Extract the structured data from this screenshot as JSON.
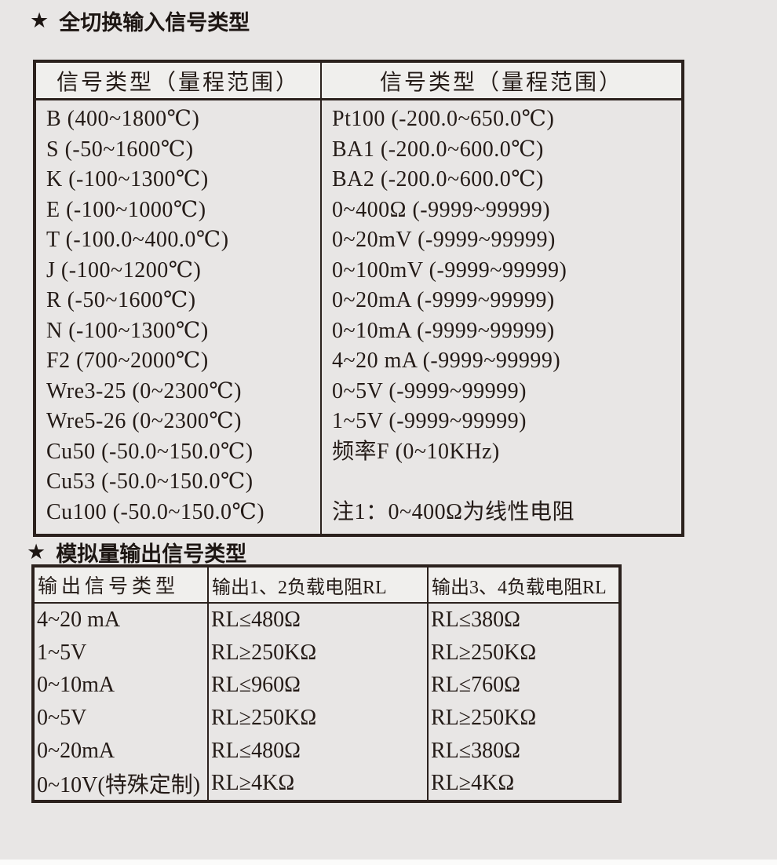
{
  "colors": {
    "page_background": "#e8e6e5",
    "table_border": "#2b211d",
    "header_fill": "#f0efed",
    "text": "#241b17"
  },
  "sections": {
    "input": {
      "star": "★",
      "title": "全切换输入信号类型",
      "table": {
        "headers": [
          "信号类型（量程范围）",
          "信号类型（量程范围）"
        ],
        "left_rows": [
          "B (400~1800℃)",
          "S (-50~1600℃)",
          "K (-100~1300℃)",
          "E (-100~1000℃)",
          "T (-100.0~400.0℃)",
          "J (-100~1200℃)",
          "R (-50~1600℃)",
          "N (-100~1300℃)",
          "F2 (700~2000℃)",
          "Wre3-25 (0~2300℃)",
          "Wre5-26 (0~2300℃)",
          "Cu50 (-50.0~150.0℃)",
          "Cu53 (-50.0~150.0℃)",
          "Cu100 (-50.0~150.0℃)"
        ],
        "right_rows": [
          "Pt100 (-200.0~650.0℃)",
          "BA1 (-200.0~600.0℃)",
          "BA2 (-200.0~600.0℃)",
          "0~400Ω (-9999~99999)",
          "0~20mV (-9999~99999)",
          "0~100mV (-9999~99999)",
          "0~20mA (-9999~99999)",
          "0~10mA (-9999~99999)",
          "4~20 mA (-9999~99999)",
          "0~5V (-9999~99999)",
          "1~5V (-9999~99999)",
          "频率F (0~10KHz)",
          "",
          "注1：0~400Ω为线性电阻"
        ]
      }
    },
    "output": {
      "star": "★",
      "title": "模拟量输出信号类型",
      "table": {
        "headers": [
          "输出信号类型",
          "输出1、2负载电阻RL",
          "输出3、4负载电阻RL"
        ],
        "rows": [
          {
            "type": "4~20 mA",
            "rl12": "RL≤480Ω",
            "rl34": "RL≤380Ω"
          },
          {
            "type": "1~5V",
            "rl12": "RL≥250KΩ",
            "rl34": "RL≥250KΩ"
          },
          {
            "type": "0~10mA",
            "rl12": "RL≤960Ω",
            "rl34": "RL≤760Ω"
          },
          {
            "type": "0~5V",
            "rl12": "RL≥250KΩ",
            "rl34": "RL≥250KΩ"
          },
          {
            "type": "0~20mA",
            "rl12": "RL≤480Ω",
            "rl34": "RL≤380Ω"
          },
          {
            "type": "0~10V(特殊定制)",
            "rl12": "RL≥4KΩ",
            "rl34": "RL≥4KΩ"
          }
        ]
      }
    }
  }
}
